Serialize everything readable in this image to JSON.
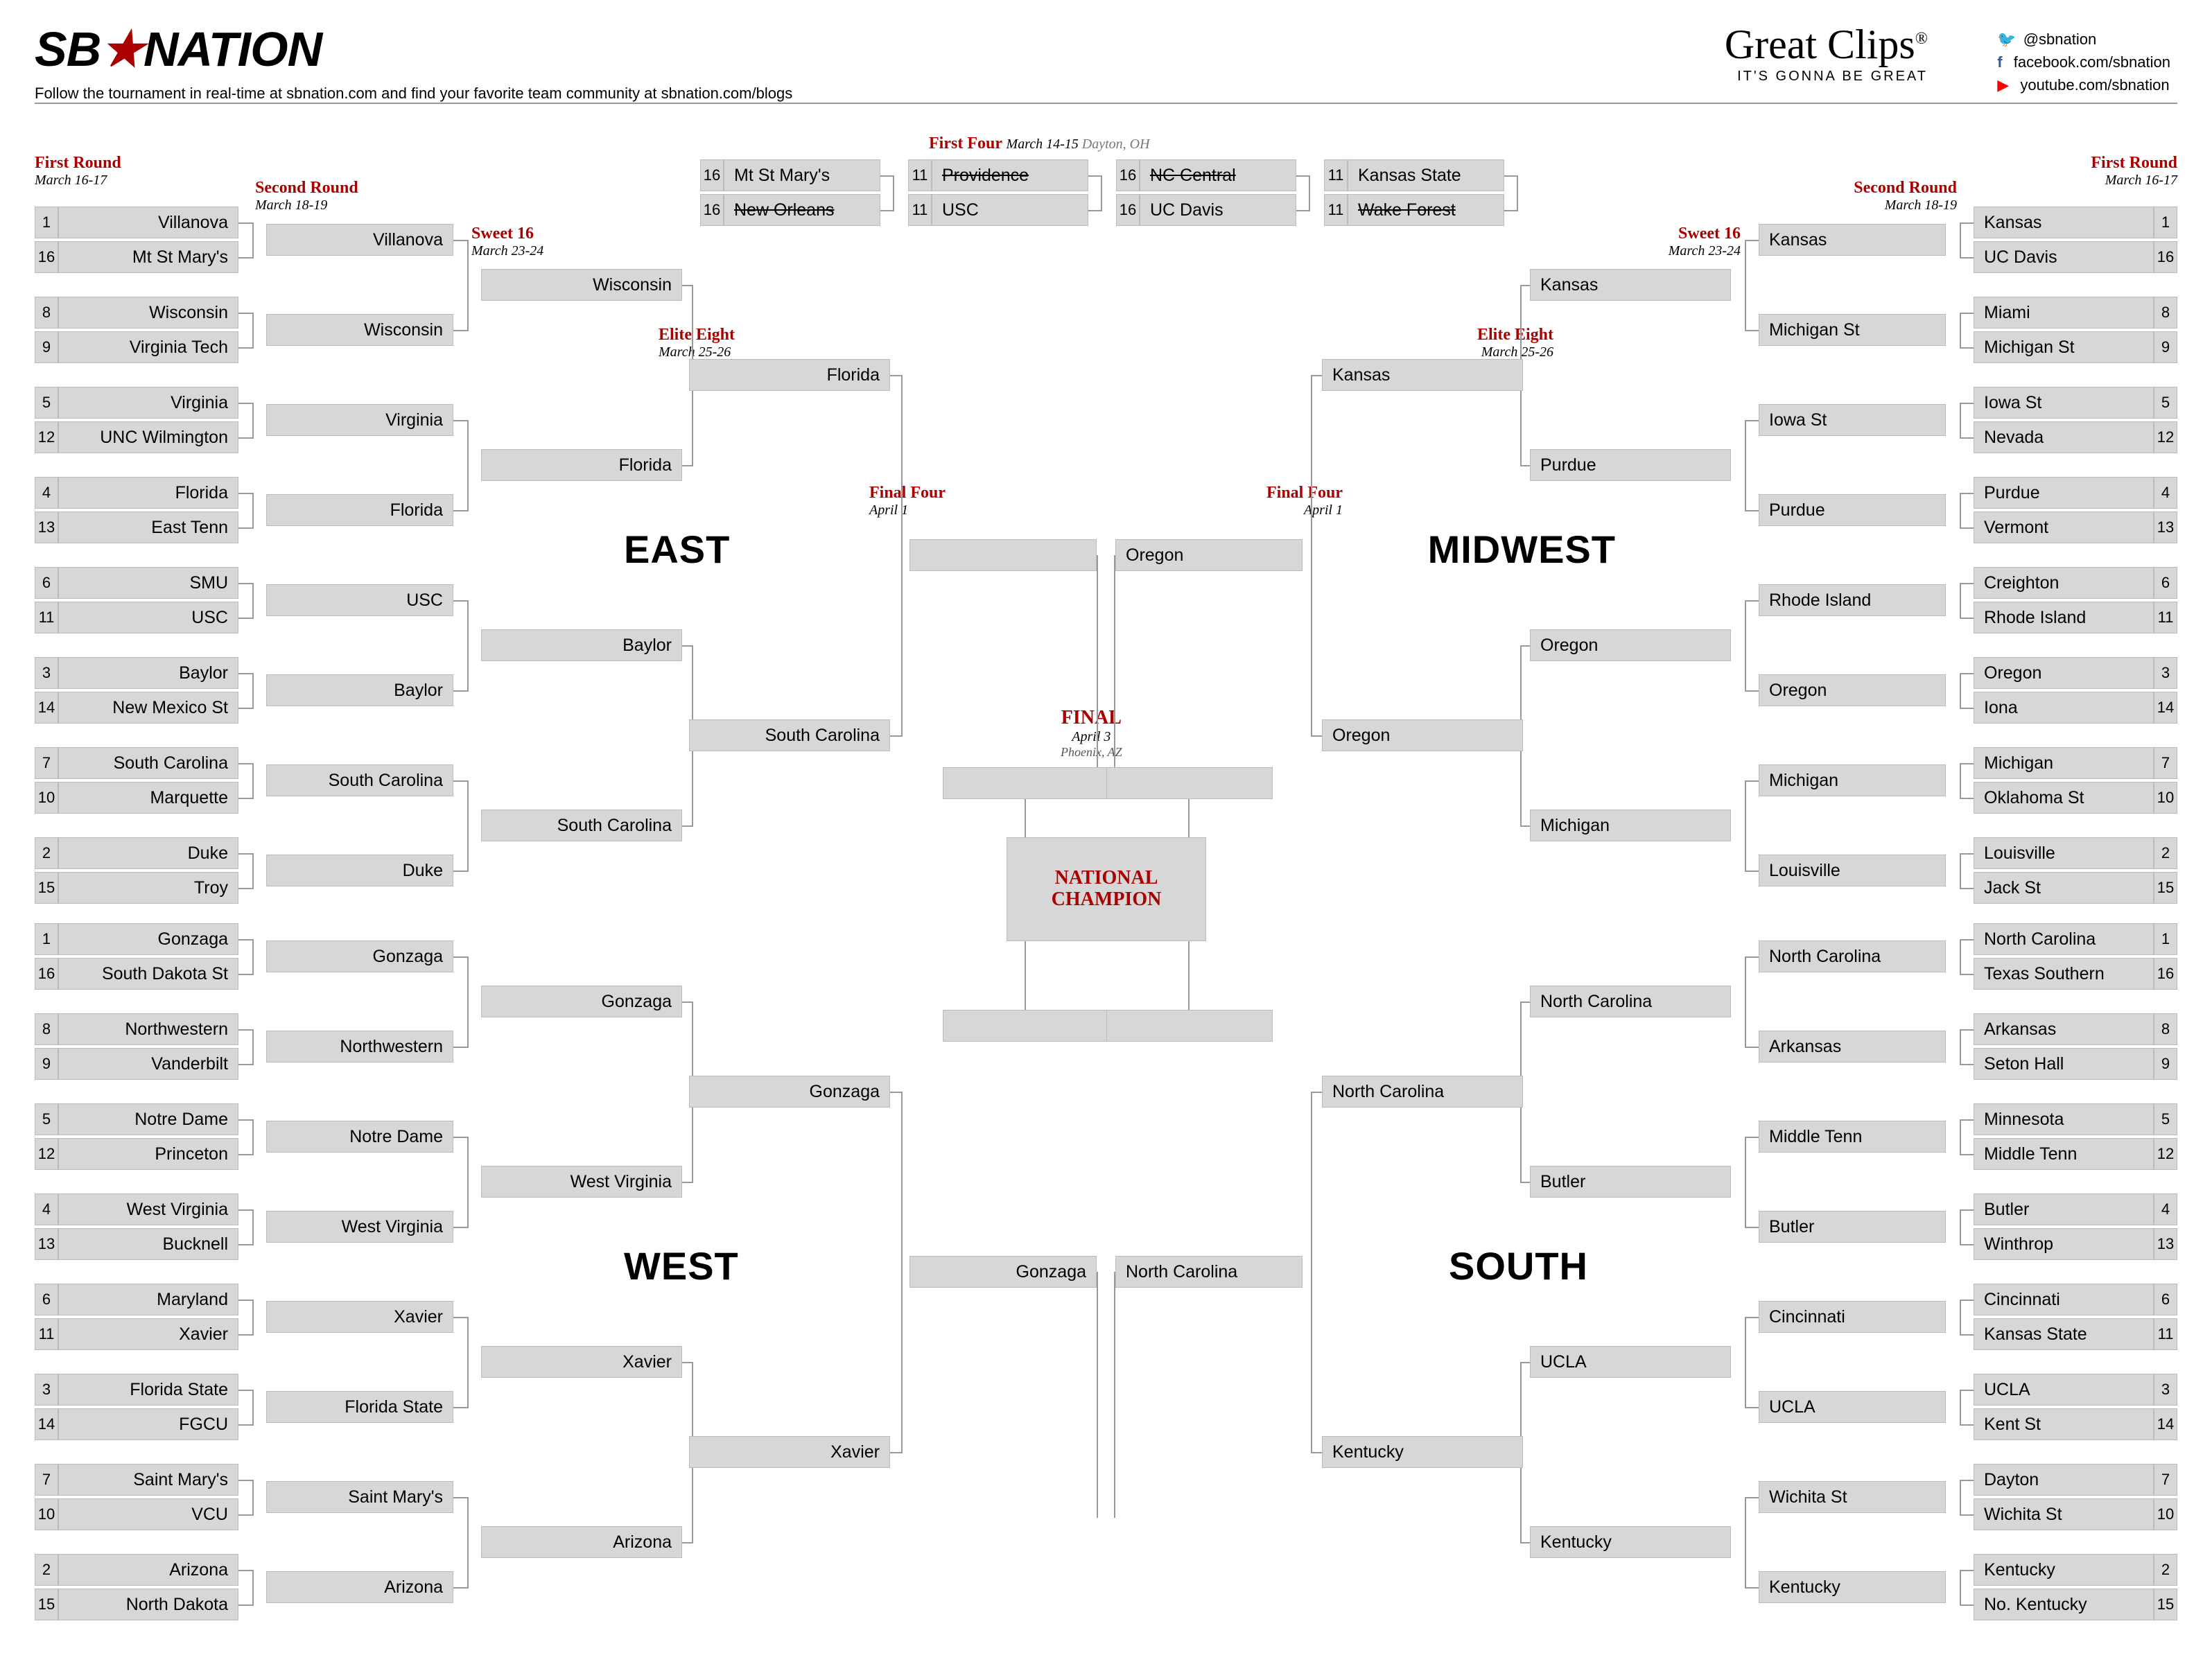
{
  "branding": {
    "logo1": "SB",
    "logo2": "NATION",
    "tagline": "Follow the tournament in real-time at sbnation.com and find your favorite team community at sbnation.com/blogs",
    "sponsor": "Great Clips",
    "sponsor_r": "®",
    "sponsor_tag": "IT'S GONNA BE GREAT",
    "so1": "@sbnation",
    "so2": "facebook.com/sbnation",
    "so3": "youtube.com/sbnation"
  },
  "rounds": {
    "r1": "First Round",
    "r1d": "March 16-17",
    "r2": "Second Round",
    "r2d": "March 18-19",
    "s16": "Sweet 16",
    "s16d": "March 23-24",
    "e8": "Elite Eight",
    "e8d": "March 25-26",
    "f4": "Final Four",
    "f4d": "April 1",
    "ff": "First Four",
    "ffd": "March 14-15",
    "ffloc": "Dayton, OH",
    "fin": "FINAL",
    "find": "April 3",
    "finloc": "Phoenix, AZ",
    "champ": "NATIONAL CHAMPION"
  },
  "regions": {
    "e": "EAST",
    "w": "WEST",
    "mw": "MIDWEST",
    "s": "SOUTH"
  },
  "firstfour": {
    "g1a": "Mt St Mary's",
    "g1as": "16",
    "g1b": "New Orleans",
    "g1bs": "16",
    "g2a": "Providence",
    "g2as": "11",
    "g2b": "USC",
    "g2bs": "11",
    "g3a": "NC Central",
    "g3as": "16",
    "g3b": "UC Davis",
    "g3bs": "16",
    "g4a": "Kansas State",
    "g4as": "11",
    "g4b": "Wake Forest",
    "g4bs": "11"
  },
  "east": {
    "r1": [
      {
        "s": "1",
        "t": "Villanova"
      },
      {
        "s": "16",
        "t": "Mt St Mary's"
      },
      {
        "s": "8",
        "t": "Wisconsin"
      },
      {
        "s": "9",
        "t": "Virginia Tech"
      },
      {
        "s": "5",
        "t": "Virginia"
      },
      {
        "s": "12",
        "t": "UNC Wilmington"
      },
      {
        "s": "4",
        "t": "Florida"
      },
      {
        "s": "13",
        "t": "East Tenn"
      },
      {
        "s": "6",
        "t": "SMU"
      },
      {
        "s": "11",
        "t": "USC"
      },
      {
        "s": "3",
        "t": "Baylor"
      },
      {
        "s": "14",
        "t": "New Mexico St"
      },
      {
        "s": "7",
        "t": "South Carolina"
      },
      {
        "s": "10",
        "t": "Marquette"
      },
      {
        "s": "2",
        "t": "Duke"
      },
      {
        "s": "15",
        "t": "Troy"
      }
    ],
    "r2": [
      "Villanova",
      "Wisconsin",
      "Virginia",
      "Florida",
      "USC",
      "Baylor",
      "South Carolina",
      "Duke"
    ],
    "s16": [
      "Wisconsin",
      "Florida",
      "Baylor",
      "South Carolina"
    ],
    "e8": [
      "Florida",
      "South Carolina"
    ],
    "f4": ""
  },
  "west": {
    "r1": [
      {
        "s": "1",
        "t": "Gonzaga"
      },
      {
        "s": "16",
        "t": "South Dakota St"
      },
      {
        "s": "8",
        "t": "Northwestern"
      },
      {
        "s": "9",
        "t": "Vanderbilt"
      },
      {
        "s": "5",
        "t": "Notre Dame"
      },
      {
        "s": "12",
        "t": "Princeton"
      },
      {
        "s": "4",
        "t": "West Virginia"
      },
      {
        "s": "13",
        "t": "Bucknell"
      },
      {
        "s": "6",
        "t": "Maryland"
      },
      {
        "s": "11",
        "t": "Xavier"
      },
      {
        "s": "3",
        "t": "Florida State"
      },
      {
        "s": "14",
        "t": "FGCU"
      },
      {
        "s": "7",
        "t": "Saint Mary's"
      },
      {
        "s": "10",
        "t": "VCU"
      },
      {
        "s": "2",
        "t": "Arizona"
      },
      {
        "s": "15",
        "t": "North Dakota"
      }
    ],
    "r2": [
      "Gonzaga",
      "Northwestern",
      "Notre Dame",
      "West Virginia",
      "Xavier",
      "Florida State",
      "Saint Mary's",
      "Arizona"
    ],
    "s16": [
      "Gonzaga",
      "West Virginia",
      "Xavier",
      "Arizona"
    ],
    "e8": [
      "Gonzaga",
      "Xavier"
    ],
    "f4": "Gonzaga"
  },
  "midwest": {
    "r1": [
      {
        "s": "1",
        "t": "Kansas"
      },
      {
        "s": "16",
        "t": "UC Davis"
      },
      {
        "s": "8",
        "t": "Miami"
      },
      {
        "s": "9",
        "t": "Michigan St"
      },
      {
        "s": "5",
        "t": "Iowa St"
      },
      {
        "s": "12",
        "t": "Nevada"
      },
      {
        "s": "4",
        "t": "Purdue"
      },
      {
        "s": "13",
        "t": "Vermont"
      },
      {
        "s": "6",
        "t": "Creighton"
      },
      {
        "s": "11",
        "t": "Rhode Island"
      },
      {
        "s": "3",
        "t": "Oregon"
      },
      {
        "s": "14",
        "t": "Iona"
      },
      {
        "s": "7",
        "t": "Michigan"
      },
      {
        "s": "10",
        "t": "Oklahoma St"
      },
      {
        "s": "2",
        "t": "Louisville"
      },
      {
        "s": "15",
        "t": "Jack St"
      }
    ],
    "r2": [
      "Kansas",
      "Michigan St",
      "Iowa St",
      "Purdue",
      "Rhode Island",
      "Oregon",
      "Michigan",
      "Louisville"
    ],
    "s16": [
      "Kansas",
      "Purdue",
      "Oregon",
      "Michigan"
    ],
    "e8": [
      "Kansas",
      "Oregon"
    ],
    "f4": "Oregon"
  },
  "south": {
    "r1": [
      {
        "s": "1",
        "t": "North Carolina"
      },
      {
        "s": "16",
        "t": "Texas Southern"
      },
      {
        "s": "8",
        "t": "Arkansas"
      },
      {
        "s": "9",
        "t": "Seton Hall"
      },
      {
        "s": "5",
        "t": "Minnesota"
      },
      {
        "s": "12",
        "t": "Middle Tenn"
      },
      {
        "s": "4",
        "t": "Butler"
      },
      {
        "s": "13",
        "t": "Winthrop"
      },
      {
        "s": "6",
        "t": "Cincinnati"
      },
      {
        "s": "11",
        "t": "Kansas State"
      },
      {
        "s": "3",
        "t": "UCLA"
      },
      {
        "s": "14",
        "t": "Kent St"
      },
      {
        "s": "7",
        "t": "Dayton"
      },
      {
        "s": "10",
        "t": "Wichita St"
      },
      {
        "s": "2",
        "t": "Kentucky"
      },
      {
        "s": "15",
        "t": "No. Kentucky"
      }
    ],
    "r2": [
      "North Carolina",
      "Arkansas",
      "Middle Tenn",
      "Butler",
      "Cincinnati",
      "UCLA",
      "Wichita St",
      "Kentucky"
    ],
    "s16": [
      "North Carolina",
      "Butler",
      "UCLA",
      "Kentucky"
    ],
    "e8": [
      "North Carolina",
      "Kentucky"
    ],
    "f4": "North Carolina"
  },
  "finals": {
    "left": "",
    "right": ""
  },
  "layout": {
    "r1w": 260,
    "r2w": 270,
    "s16w": 290,
    "e8w": 290,
    "f4w": 270,
    "seedw": 34,
    "h": 46
  }
}
